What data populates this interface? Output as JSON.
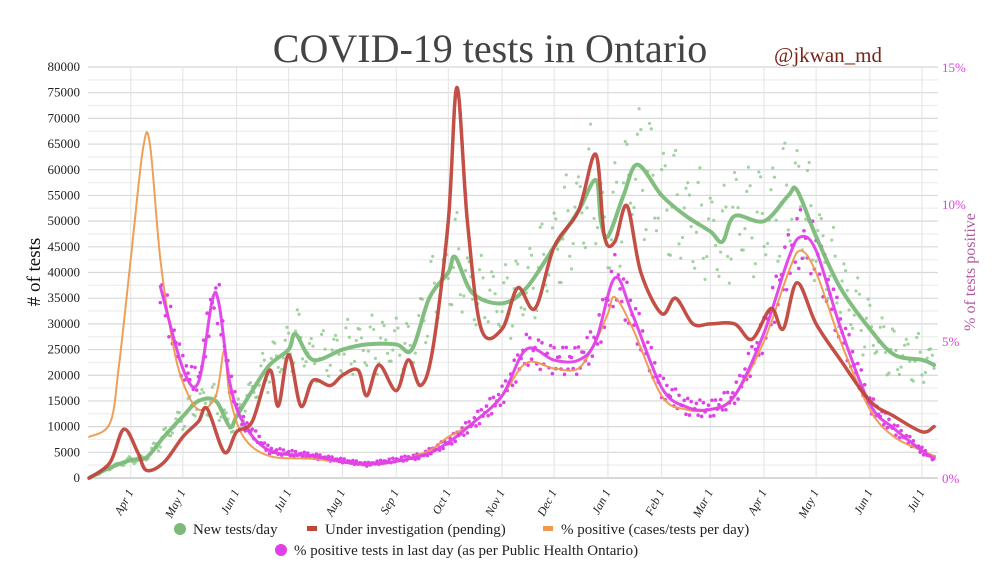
{
  "chart_data": {
    "type": "line",
    "title": "COVID-19 tests in Ontario",
    "attribution": "@jkwan_md",
    "ylabel": "# of tests",
    "y2label": "% of tests positive",
    "ylim": [
      0,
      80000
    ],
    "y2lim": [
      0,
      15
    ],
    "yticks": [
      "0",
      "5000",
      "10000",
      "15000",
      "20000",
      "25000",
      "30000",
      "35000",
      "40000",
      "45000",
      "50000",
      "55000",
      "60000",
      "65000",
      "70000",
      "75000",
      "80000"
    ],
    "y2ticks": [
      "0%",
      "5%",
      "10%",
      "15%"
    ],
    "x_start_date": "2020-03-01",
    "x_unit": "days since 2020-03-01",
    "xticks": [
      {
        "label": "Apr 1",
        "date": "2020-04-01"
      },
      {
        "label": "May 1",
        "date": "2020-05-01"
      },
      {
        "label": "Jun 1",
        "date": "2020-06-01"
      },
      {
        "label": "Jul 1",
        "date": "2020-07-01"
      },
      {
        "label": "Aug 1",
        "date": "2020-08-01"
      },
      {
        "label": "Sep 1",
        "date": "2020-09-01"
      },
      {
        "label": "Oct 1",
        "date": "2020-10-01"
      },
      {
        "label": "Nov 1",
        "date": "2020-11-01"
      },
      {
        "label": "Dec 1",
        "date": "2020-12-01"
      },
      {
        "label": "Jan 1",
        "date": "2021-01-01"
      },
      {
        "label": "Feb 1",
        "date": "2021-02-01"
      },
      {
        "label": "Mar 1",
        "date": "2021-03-01"
      },
      {
        "label": "Apr 1",
        "date": "2021-04-01"
      },
      {
        "label": "May 1",
        "date": "2021-05-01"
      },
      {
        "label": "Jun 1",
        "date": "2021-06-01"
      },
      {
        "label": "Jul 1",
        "date": "2021-07-01"
      }
    ],
    "grid": true,
    "legend_position": "bottom",
    "series": [
      {
        "name": "New tests/day",
        "axis": "left",
        "color": "#7cba7a",
        "marker": "circle",
        "x": [
          7,
          19,
          31,
          40,
          50,
          61,
          70,
          80,
          88,
          92,
          101,
          111,
          122,
          126,
          136,
          153,
          167,
          184,
          193,
          203,
          214,
          218,
          228,
          245,
          259,
          275,
          289,
          299,
          302,
          306,
          315,
          323,
          337,
          351,
          365,
          372,
          379,
          396,
          410,
          415,
          426,
          440,
          457,
          471,
          487,
          494
        ],
        "y": [
          0,
          2000,
          3500,
          4000,
          8000,
          12000,
          15000,
          15000,
          10000,
          12000,
          17000,
          22000,
          25000,
          28000,
          23000,
          25000,
          26000,
          26000,
          25000,
          35000,
          40000,
          43000,
          36000,
          34000,
          37000,
          45000,
          52000,
          58000,
          50000,
          47000,
          55000,
          61000,
          55000,
          51000,
          48000,
          46000,
          51000,
          50000,
          55000,
          56000,
          47000,
          37000,
          29000,
          24000,
          23000,
          22000
        ]
      },
      {
        "name": "Under investigation (pending)",
        "axis": "left",
        "color": "#c0463c",
        "marker": "line",
        "x": [
          7,
          19,
          27,
          35,
          40,
          50,
          61,
          70,
          75,
          85,
          92,
          101,
          111,
          116,
          122,
          129,
          136,
          146,
          153,
          162,
          167,
          174,
          184,
          191,
          198,
          205,
          214,
          219,
          225,
          233,
          245,
          254,
          264,
          275,
          289,
          299,
          304,
          310,
          317,
          325,
          337,
          345,
          355,
          365,
          379,
          389,
          400,
          407,
          415,
          426,
          440,
          457,
          471,
          487,
          494
        ],
        "y": [
          0,
          3000,
          9500,
          5000,
          1500,
          3000,
          8000,
          11000,
          13500,
          5000,
          9000,
          11000,
          21000,
          14000,
          24000,
          14000,
          19000,
          18000,
          20000,
          21000,
          16000,
          22000,
          17000,
          23000,
          18000,
          25000,
          50000,
          76000,
          50000,
          29000,
          29000,
          37000,
          33000,
          45000,
          52000,
          63000,
          47000,
          46000,
          53000,
          40000,
          32000,
          35000,
          30000,
          30000,
          30000,
          27000,
          33000,
          29000,
          38000,
          30000,
          23000,
          15000,
          12000,
          9000,
          10000
        ]
      },
      {
        "name": "% positive (cases/tests per day)",
        "axis": "right",
        "color": "#ee9a4e",
        "marker": "line",
        "x": [
          7,
          19,
          24,
          31,
          38,
          42,
          48,
          55,
          61,
          70,
          80,
          85,
          88,
          96,
          111,
          136,
          167,
          184,
          203,
          214,
          228,
          245,
          259,
          275,
          289,
          299,
          306,
          310,
          320,
          337,
          351,
          365,
          379,
          396,
          410,
          417,
          426,
          440,
          457,
          471,
          487,
          494
        ],
        "y": [
          1.5,
          2,
          4,
          8,
          12,
          12.2,
          8,
          5,
          3.5,
          2.5,
          3,
          4.7,
          3,
          1.5,
          0.8,
          0.7,
          0.5,
          0.6,
          1,
          1.5,
          2,
          3,
          4.2,
          4,
          4,
          5,
          6,
          6.6,
          5.5,
          3,
          2.5,
          2.5,
          3,
          5,
          7.5,
          8.3,
          7.5,
          5,
          2.5,
          1.5,
          1,
          0.8
        ]
      },
      {
        "name": "% positive tests in last day (as per Public Health Ontario)",
        "axis": "right",
        "color": "#e040e8",
        "marker": "circle",
        "x": [
          48,
          61,
          70,
          78,
          82,
          88,
          96,
          111,
          136,
          167,
          198,
          214,
          228,
          245,
          259,
          275,
          289,
          299,
          310,
          320,
          337,
          351,
          365,
          379,
          396,
          410,
          417,
          426,
          440,
          457,
          471,
          487,
          494
        ],
        "y": [
          7,
          4,
          3.5,
          6.5,
          6.3,
          3.5,
          2,
          1,
          0.8,
          0.5,
          0.8,
          1.3,
          2,
          3,
          4.7,
          4.3,
          4.3,
          5,
          7.3,
          6,
          3.3,
          2.6,
          2.5,
          3,
          5.3,
          8,
          8.8,
          8.3,
          5.5,
          2.7,
          1.8,
          1,
          0.7
        ]
      }
    ]
  }
}
